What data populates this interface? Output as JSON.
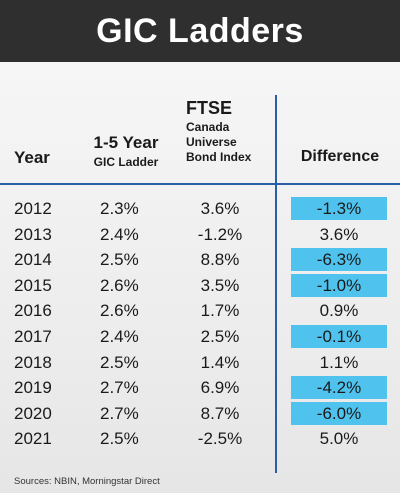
{
  "title": "GIC Ladders",
  "headers": {
    "year": "Year",
    "gic_line1": "1-5 Year",
    "gic_line2": "GIC Ladder",
    "ftse_line1": "FTSE",
    "ftse_sub": [
      "Canada",
      "Universe",
      "Bond Index"
    ],
    "difference": "Difference"
  },
  "colors": {
    "title_bg": "#2f2f2f",
    "accent_line": "#2a5fa8",
    "highlight": "#4fc3ee"
  },
  "chart_data": {
    "type": "table",
    "title": "GIC Ladders",
    "columns": [
      "Year",
      "1-5 Year GIC Ladder",
      "FTSE Canada Universe Bond Index",
      "Difference"
    ],
    "rows": [
      {
        "year": "2012",
        "gic": "2.3%",
        "ftse": "3.6%",
        "diff": "-1.3%",
        "highlight": true
      },
      {
        "year": "2013",
        "gic": "2.4%",
        "ftse": "-1.2%",
        "diff": "3.6%",
        "highlight": false
      },
      {
        "year": "2014",
        "gic": "2.5%",
        "ftse": "8.8%",
        "diff": "-6.3%",
        "highlight": true
      },
      {
        "year": "2015",
        "gic": "2.6%",
        "ftse": "3.5%",
        "diff": "-1.0%",
        "highlight": true
      },
      {
        "year": "2016",
        "gic": "2.6%",
        "ftse": "1.7%",
        "diff": "0.9%",
        "highlight": false
      },
      {
        "year": "2017",
        "gic": "2.4%",
        "ftse": "2.5%",
        "diff": "-0.1%",
        "highlight": true
      },
      {
        "year": "2018",
        "gic": "2.5%",
        "ftse": "1.4%",
        "diff": "1.1%",
        "highlight": false
      },
      {
        "year": "2019",
        "gic": "2.7%",
        "ftse": "6.9%",
        "diff": "-4.2%",
        "highlight": true
      },
      {
        "year": "2020",
        "gic": "2.7%",
        "ftse": "8.7%",
        "diff": "-6.0%",
        "highlight": true
      },
      {
        "year": "2021",
        "gic": "2.5%",
        "ftse": "-2.5%",
        "diff": "5.0%",
        "highlight": false
      }
    ]
  },
  "sources": "Sources: NBIN, Morningstar Direct"
}
